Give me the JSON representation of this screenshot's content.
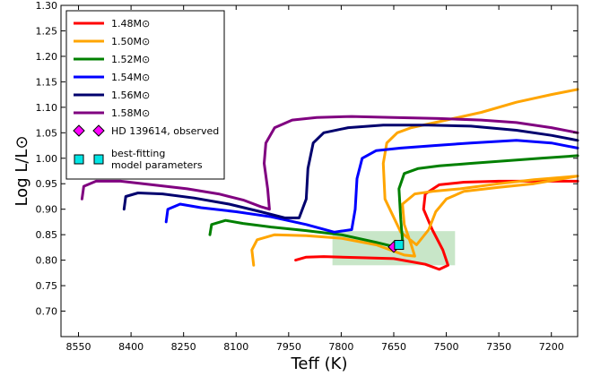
{
  "chart_data": {
    "type": "line",
    "xlabel": "Teff (K)",
    "ylabel": "Log L/L⊙",
    "x_reversed": true,
    "xlim": [
      8600,
      7125
    ],
    "ylim": [
      0.65,
      1.3
    ],
    "xticks": [
      "8550",
      "8400",
      "8250",
      "8100",
      "7950",
      "7800",
      "7650",
      "7500",
      "7350",
      "7200"
    ],
    "xtick_values": [
      8550,
      8400,
      8250,
      8100,
      7950,
      7800,
      7650,
      7500,
      7350,
      7200
    ],
    "yticks": [
      "0.70",
      "0.75",
      "0.80",
      "0.85",
      "0.90",
      "0.95",
      "1.00",
      "1.05",
      "1.10",
      "1.15",
      "1.20",
      "1.25",
      "1.30"
    ],
    "ytick_values": [
      0.7,
      0.75,
      0.8,
      0.85,
      0.9,
      0.95,
      1.0,
      1.05,
      1.1,
      1.15,
      1.2,
      1.25,
      1.3
    ],
    "legend_position": "top-left",
    "series": [
      {
        "name": "1.48M⊙",
        "color": "#ff0000",
        "points": [
          [
            7930,
            0.8
          ],
          [
            7900,
            0.806
          ],
          [
            7850,
            0.807
          ],
          [
            7750,
            0.805
          ],
          [
            7650,
            0.803
          ],
          [
            7560,
            0.792
          ],
          [
            7520,
            0.782
          ],
          [
            7495,
            0.79
          ],
          [
            7510,
            0.82
          ],
          [
            7540,
            0.86
          ],
          [
            7565,
            0.9
          ],
          [
            7560,
            0.93
          ],
          [
            7520,
            0.948
          ],
          [
            7450,
            0.953
          ],
          [
            7350,
            0.955
          ],
          [
            7250,
            0.955
          ],
          [
            7125,
            0.955
          ]
        ]
      },
      {
        "name": "1.50M⊙",
        "color": "#ffa500",
        "points": [
          [
            8050,
            0.79
          ],
          [
            8055,
            0.82
          ],
          [
            8040,
            0.84
          ],
          [
            7990,
            0.85
          ],
          [
            7900,
            0.848
          ],
          [
            7800,
            0.843
          ],
          [
            7700,
            0.83
          ],
          [
            7620,
            0.81
          ],
          [
            7590,
            0.808
          ],
          [
            7600,
            0.83
          ],
          [
            7620,
            0.87
          ],
          [
            7625,
            0.91
          ],
          [
            7590,
            0.93
          ],
          [
            7540,
            0.935
          ],
          [
            7460,
            0.94
          ],
          [
            7350,
            0.95
          ],
          [
            7250,
            0.958
          ],
          [
            7125,
            0.965
          ],
          [
            7250,
            0.95
          ],
          [
            7350,
            0.943
          ],
          [
            7450,
            0.935
          ],
          [
            7500,
            0.92
          ],
          [
            7530,
            0.895
          ],
          [
            7550,
            0.86
          ],
          [
            7585,
            0.83
          ],
          [
            7630,
            0.855
          ],
          [
            7675,
            0.92
          ],
          [
            7680,
            0.99
          ],
          [
            7670,
            1.03
          ],
          [
            7640,
            1.05
          ],
          [
            7600,
            1.06
          ],
          [
            7500,
            1.075
          ],
          [
            7400,
            1.09
          ],
          [
            7300,
            1.11
          ],
          [
            7200,
            1.125
          ],
          [
            7125,
            1.135
          ]
        ]
      },
      {
        "name": "1.52M⊙",
        "color": "#008000",
        "points": [
          [
            8175,
            0.85
          ],
          [
            8170,
            0.87
          ],
          [
            8130,
            0.878
          ],
          [
            8080,
            0.872
          ],
          [
            8000,
            0.865
          ],
          [
            7900,
            0.858
          ],
          [
            7800,
            0.85
          ],
          [
            7700,
            0.835
          ],
          [
            7640,
            0.825
          ],
          [
            7625,
            0.84
          ],
          [
            7630,
            0.88
          ],
          [
            7635,
            0.94
          ],
          [
            7620,
            0.97
          ],
          [
            7580,
            0.98
          ],
          [
            7520,
            0.985
          ],
          [
            7430,
            0.99
          ],
          [
            7330,
            0.995
          ],
          [
            7230,
            1.0
          ],
          [
            7125,
            1.005
          ]
        ]
      },
      {
        "name": "1.54M⊙",
        "color": "#0000ff",
        "points": [
          [
            8300,
            0.875
          ],
          [
            8295,
            0.9
          ],
          [
            8260,
            0.91
          ],
          [
            8200,
            0.903
          ],
          [
            8100,
            0.895
          ],
          [
            8000,
            0.885
          ],
          [
            7900,
            0.87
          ],
          [
            7820,
            0.855
          ],
          [
            7770,
            0.86
          ],
          [
            7760,
            0.9
          ],
          [
            7755,
            0.96
          ],
          [
            7740,
            1.0
          ],
          [
            7700,
            1.015
          ],
          [
            7630,
            1.02
          ],
          [
            7530,
            1.025
          ],
          [
            7430,
            1.03
          ],
          [
            7300,
            1.035
          ],
          [
            7200,
            1.03
          ],
          [
            7125,
            1.02
          ]
        ]
      },
      {
        "name": "1.56M⊙",
        "color": "#00006e",
        "points": [
          [
            8420,
            0.9
          ],
          [
            8415,
            0.925
          ],
          [
            8380,
            0.932
          ],
          [
            8310,
            0.93
          ],
          [
            8220,
            0.922
          ],
          [
            8120,
            0.91
          ],
          [
            8030,
            0.895
          ],
          [
            7960,
            0.883
          ],
          [
            7920,
            0.883
          ],
          [
            7900,
            0.92
          ],
          [
            7895,
            0.98
          ],
          [
            7880,
            1.03
          ],
          [
            7850,
            1.05
          ],
          [
            7780,
            1.06
          ],
          [
            7680,
            1.065
          ],
          [
            7550,
            1.065
          ],
          [
            7430,
            1.063
          ],
          [
            7300,
            1.055
          ],
          [
            7200,
            1.045
          ],
          [
            7125,
            1.035
          ]
        ]
      },
      {
        "name": "1.58M⊙",
        "color": "#800080",
        "points": [
          [
            8540,
            0.92
          ],
          [
            8535,
            0.945
          ],
          [
            8500,
            0.955
          ],
          [
            8430,
            0.955
          ],
          [
            8340,
            0.948
          ],
          [
            8240,
            0.94
          ],
          [
            8150,
            0.93
          ],
          [
            8080,
            0.918
          ],
          [
            8030,
            0.905
          ],
          [
            8005,
            0.9
          ],
          [
            8010,
            0.94
          ],
          [
            8020,
            0.99
          ],
          [
            8015,
            1.03
          ],
          [
            7990,
            1.06
          ],
          [
            7940,
            1.075
          ],
          [
            7870,
            1.08
          ],
          [
            7770,
            1.082
          ],
          [
            7650,
            1.08
          ],
          [
            7520,
            1.078
          ],
          [
            7400,
            1.075
          ],
          [
            7300,
            1.07
          ],
          [
            7200,
            1.06
          ],
          [
            7125,
            1.05
          ]
        ]
      }
    ],
    "observed": {
      "name": "HD 139614, observed",
      "teff": 7650,
      "logL": 0.826,
      "color": "#ff00ff"
    },
    "best_fit": {
      "name": "best-fitting model parameters",
      "teff": 7635,
      "logL": 0.83,
      "color": "#00e5e5"
    },
    "error_box": {
      "teff_range": [
        7825,
        7475
      ],
      "logL_range": [
        0.79,
        0.857
      ],
      "color": "#c8e6c8"
    }
  }
}
